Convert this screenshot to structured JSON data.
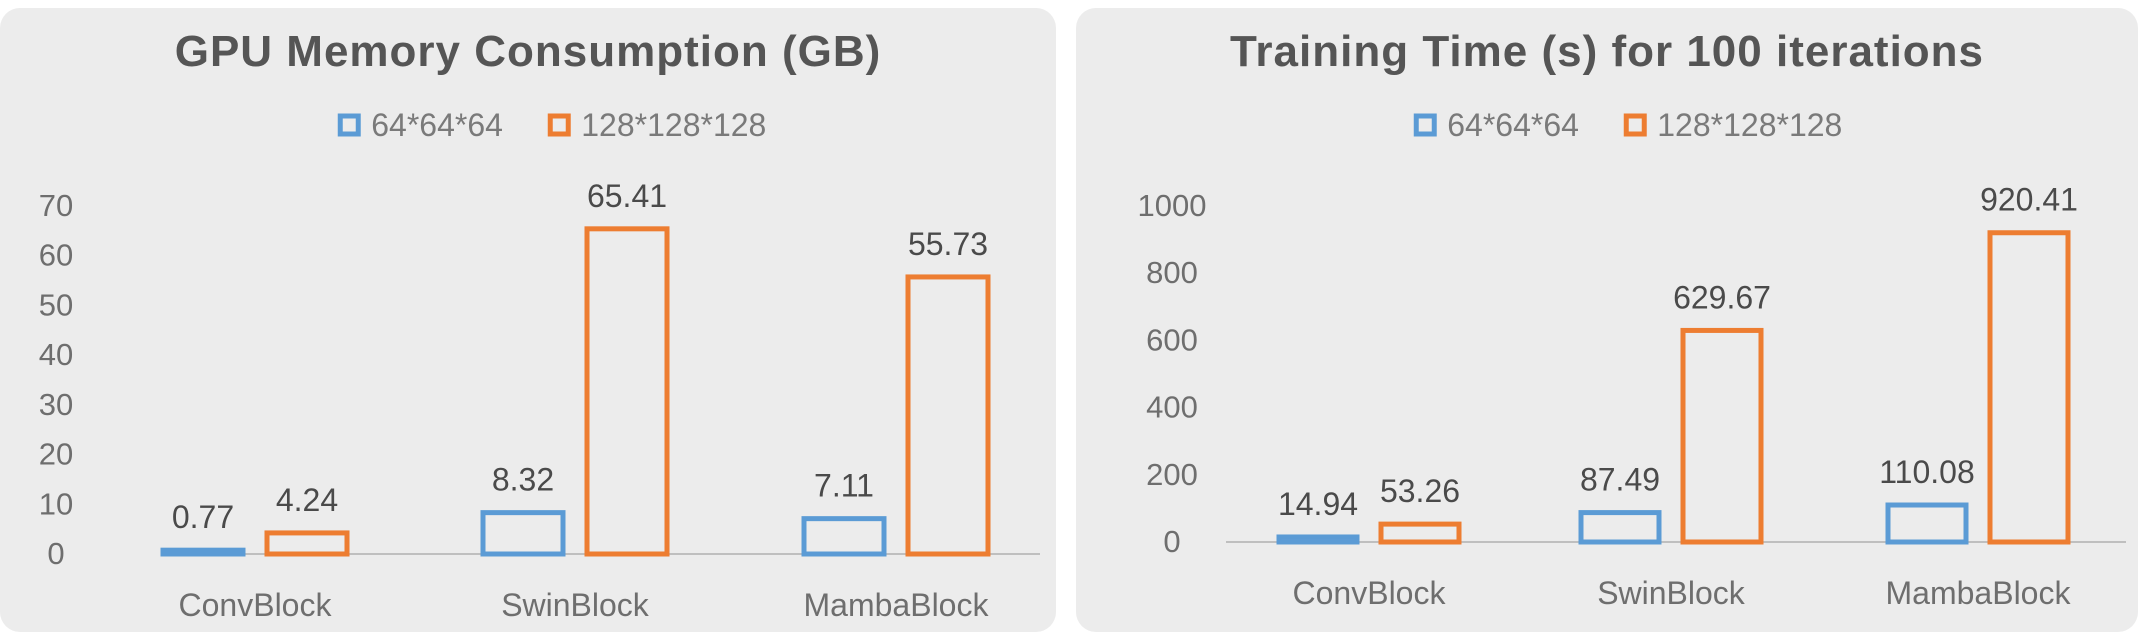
{
  "chart_data": [
    {
      "type": "bar",
      "title": "GPU Memory Consumption (GB)",
      "categories": [
        "ConvBlock",
        "SwinBlock",
        "MambaBlock"
      ],
      "series": [
        {
          "name": "64*64*64",
          "values": [
            0.77,
            8.32,
            7.11
          ],
          "labels": [
            "0.77",
            "8.32",
            "7.11"
          ],
          "color": "#5b9bd5"
        },
        {
          "name": "128*128*128",
          "values": [
            4.24,
            65.41,
            55.73
          ],
          "labels": [
            "4.24",
            "65.41",
            "55.73"
          ],
          "color": "#ed7d31"
        }
      ],
      "ylim": [
        0,
        70
      ],
      "yticks": [
        0,
        10,
        20,
        30,
        40,
        50,
        60,
        70
      ],
      "xlabel": "",
      "ylabel": "",
      "grid": false,
      "legend_position": "top-center"
    },
    {
      "type": "bar",
      "title": "Training Time (s) for 100 iterations",
      "categories": [
        "ConvBlock",
        "SwinBlock",
        "MambaBlock"
      ],
      "series": [
        {
          "name": "64*64*64",
          "values": [
            14.94,
            87.49,
            110.08
          ],
          "labels": [
            "14.94",
            "87.49",
            "110.08"
          ],
          "color": "#5b9bd5"
        },
        {
          "name": "128*128*128",
          "values": [
            53.26,
            629.67,
            920.41
          ],
          "labels": [
            "53.26",
            "629.67",
            "920.41"
          ],
          "color": "#ed7d31"
        }
      ],
      "ylim": [
        0,
        1000
      ],
      "yticks": [
        0,
        200,
        400,
        600,
        800,
        1000
      ],
      "xlabel": "",
      "ylabel": "",
      "grid": false,
      "legend_position": "top-center"
    }
  ]
}
